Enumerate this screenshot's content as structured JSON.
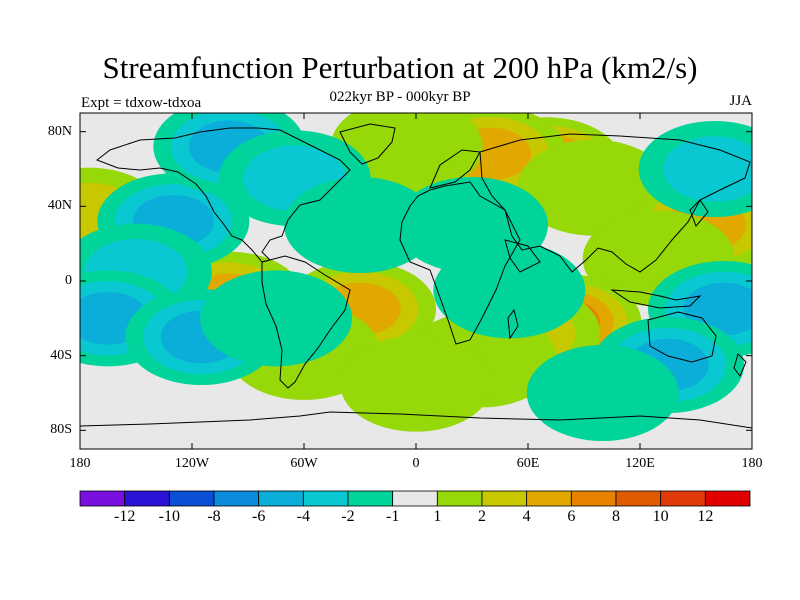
{
  "title": "Streamfunction Perturbation at 200 hPa (km2/s)",
  "subtitle": "022kyr BP - 000kyr BP",
  "left_label": "Expt = tdxow-tdxoa",
  "right_label": "JJA",
  "y_axis_labels": [
    "80N",
    "40N",
    "0",
    "40S",
    "80S"
  ],
  "x_axis_labels": [
    "180",
    "120W",
    "60W",
    "0",
    "60E",
    "120E",
    "180"
  ],
  "colorbar": {
    "labels": [
      "-12",
      "-10",
      "-8",
      "-6",
      "-4",
      "-2",
      "-1",
      "1",
      "2",
      "4",
      "6",
      "8",
      "10",
      "12"
    ],
    "colors": [
      "#7a10e0",
      "#2b14d6",
      "#0a4fd6",
      "#0a8bdc",
      "#0aaed8",
      "#0ac8d2",
      "#00d49a",
      "#e8e8e8",
      "#96d808",
      "#c8c800",
      "#e0a800",
      "#e68200",
      "#e05a00",
      "#e03a08",
      "#e00000"
    ]
  },
  "map": {
    "projection": "cylindrical equidistant",
    "lon_range": [
      -180,
      180
    ],
    "lat_range": [
      -90,
      90
    ],
    "field_blobs": [
      {
        "lon": 70,
        "lat": 62,
        "value": 8
      },
      {
        "lon": 40,
        "lat": 68,
        "value": 6
      },
      {
        "lon": -5,
        "lat": 72,
        "value": 2
      },
      {
        "lon": 95,
        "lat": 50,
        "value": 2
      },
      {
        "lon": 155,
        "lat": 30,
        "value": 6
      },
      {
        "lon": 130,
        "lat": 12,
        "value": 2
      },
      {
        "lon": 80,
        "lat": -22,
        "value": 8
      },
      {
        "lon": 58,
        "lat": -28,
        "value": 4
      },
      {
        "lon": 35,
        "lat": -42,
        "value": 2
      },
      {
        "lon": -100,
        "lat": -10,
        "value": 6
      },
      {
        "lon": -30,
        "lat": -15,
        "value": 6
      },
      {
        "lon": -60,
        "lat": -38,
        "value": 2
      },
      {
        "lon": -175,
        "lat": 35,
        "value": 4
      },
      {
        "lon": -130,
        "lat": 32,
        "value": -6
      },
      {
        "lon": -150,
        "lat": 5,
        "value": -4
      },
      {
        "lon": -165,
        "lat": -20,
        "value": -6
      },
      {
        "lon": -115,
        "lat": -30,
        "value": -6
      },
      {
        "lon": -75,
        "lat": -20,
        "value": -2
      },
      {
        "lon": -100,
        "lat": 72,
        "value": -6
      },
      {
        "lon": -65,
        "lat": 55,
        "value": -4
      },
      {
        "lon": -30,
        "lat": 30,
        "value": -2
      },
      {
        "lon": 30,
        "lat": 30,
        "value": -2
      },
      {
        "lon": 50,
        "lat": -5,
        "value": -2
      },
      {
        "lon": 165,
        "lat": -15,
        "value": -6
      },
      {
        "lon": 135,
        "lat": -45,
        "value": -6
      },
      {
        "lon": 160,
        "lat": 60,
        "value": -4
      },
      {
        "lon": 100,
        "lat": -60,
        "value": -1
      },
      {
        "lon": 0,
        "lat": -55,
        "value": 2
      }
    ]
  }
}
